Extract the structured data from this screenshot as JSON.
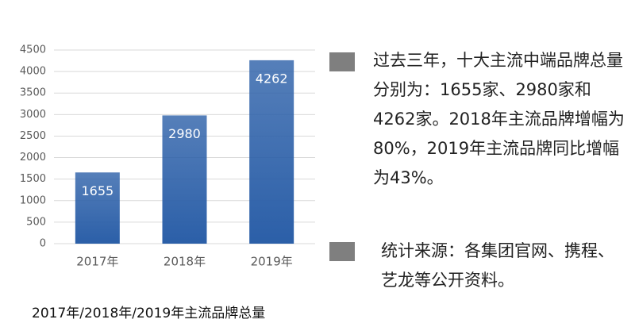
{
  "chart_data": {
    "type": "bar",
    "title": "2017年/2018年/2019年主流品牌总量",
    "categories": [
      "2017年",
      "2018年",
      "2019年"
    ],
    "values": [
      1655,
      2980,
      4262
    ],
    "color": "#2b5fa8",
    "ylim": [
      0,
      4500
    ],
    "yticks": [
      0,
      500,
      1000,
      1500,
      2000,
      2500,
      3000,
      3500,
      4000,
      4500
    ],
    "grid": true
  },
  "notes": [
    "过去三年，十大主流中端品牌总量分别为：1655家、2980家和4262家。2018年主流品牌增幅为80%，2019年主流品牌同比增幅为43%。",
    "统计来源：各集团官网、携程、艺龙等公开资料。"
  ]
}
